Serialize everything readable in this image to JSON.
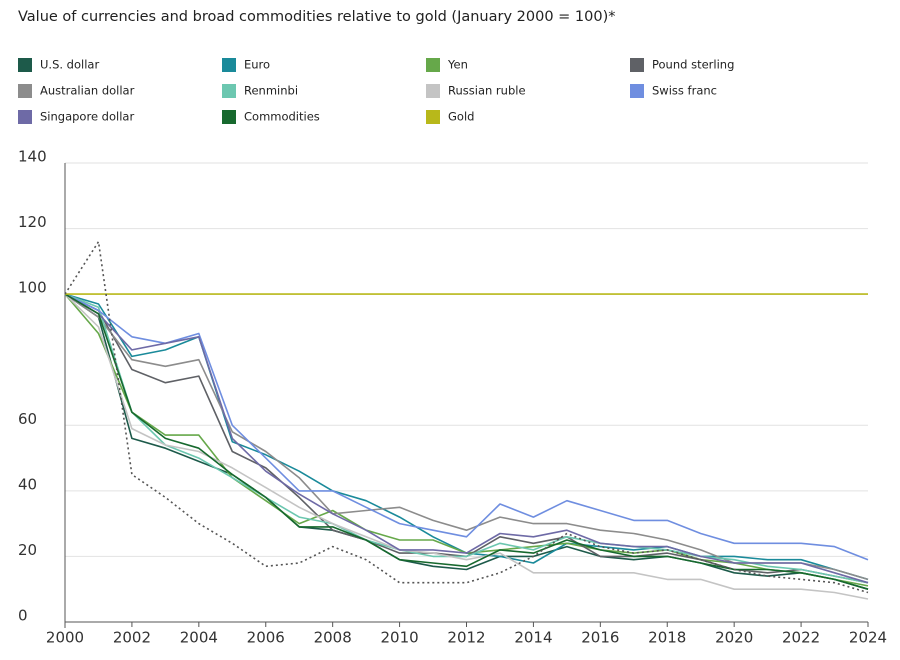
{
  "chart_data": {
    "type": "line",
    "title": "Value of currencies and broad commodities relative to gold (January 2000 = 100)*",
    "x": [
      2000,
      2001,
      2002,
      2003,
      2004,
      2005,
      2006,
      2007,
      2008,
      2009,
      2010,
      2011,
      2012,
      2013,
      2014,
      2015,
      2016,
      2017,
      2018,
      2019,
      2020,
      2021,
      2022,
      2023,
      2024
    ],
    "xlim": [
      2000,
      2024
    ],
    "xticks": [
      2000,
      2002,
      2004,
      2006,
      2008,
      2010,
      2012,
      2014,
      2016,
      2018,
      2020,
      2022,
      2024
    ],
    "ylim": [
      0,
      140
    ],
    "yticks": [
      0,
      20,
      40,
      60,
      100,
      120,
      140
    ],
    "grid": true,
    "series": [
      {
        "name": "U.S. dollar",
        "color": "#1d5a4a",
        "values": [
          100,
          93,
          56,
          53,
          49,
          45,
          38,
          29,
          28,
          25,
          19,
          17,
          16,
          20,
          20,
          23,
          20,
          19,
          20,
          18,
          15,
          14,
          15,
          13,
          10
        ]
      },
      {
        "name": "Euro",
        "color": "#1a8a9a",
        "values": [
          100,
          97,
          81,
          83,
          87,
          55,
          51,
          46,
          40,
          37,
          32,
          26,
          21,
          20,
          18,
          24,
          23,
          22,
          23,
          20,
          20,
          19,
          19,
          16,
          13
        ]
      },
      {
        "name": "Yen",
        "color": "#66a84a",
        "values": [
          100,
          88,
          64,
          57,
          57,
          44,
          37,
          30,
          34,
          28,
          25,
          25,
          21,
          22,
          23,
          24,
          22,
          21,
          22,
          19,
          18,
          16,
          15,
          13,
          11
        ]
      },
      {
        "name": "Pound sterling",
        "color": "#5f6166",
        "values": [
          100,
          95,
          77,
          73,
          75,
          52,
          47,
          38,
          28,
          25,
          21,
          21,
          20,
          26,
          24,
          26,
          20,
          20,
          21,
          19,
          16,
          15,
          16,
          14,
          12
        ]
      },
      {
        "name": "Australian dollar",
        "color": "#8c8c8c",
        "values": [
          100,
          93,
          80,
          78,
          80,
          58,
          52,
          44,
          33,
          34,
          35,
          31,
          28,
          32,
          30,
          30,
          28,
          27,
          25,
          22,
          18,
          18,
          18,
          16,
          13
        ]
      },
      {
        "name": "Renminbi",
        "color": "#6cc7b0",
        "values": [
          100,
          96,
          64,
          54,
          50,
          44,
          38,
          32,
          30,
          25,
          22,
          20,
          20,
          24,
          22,
          26,
          24,
          23,
          22,
          20,
          19,
          17,
          16,
          14,
          12
        ]
      },
      {
        "name": "Russian ruble",
        "color": "#c4c4c4",
        "values": [
          100,
          90,
          59,
          54,
          52,
          47,
          41,
          35,
          30,
          26,
          22,
          21,
          19,
          21,
          15,
          15,
          15,
          15,
          13,
          13,
          10,
          10,
          10,
          9,
          7
        ]
      },
      {
        "name": "Swiss franc",
        "color": "#6f8ee0",
        "values": [
          100,
          95,
          87,
          85,
          88,
          60,
          50,
          40,
          40,
          35,
          30,
          28,
          26,
          36,
          32,
          37,
          34,
          31,
          31,
          27,
          24,
          24,
          24,
          23,
          19
        ]
      },
      {
        "name": "Singapore dollar",
        "color": "#6e6aa6",
        "values": [
          100,
          94,
          83,
          85,
          87,
          56,
          46,
          39,
          33,
          28,
          22,
          22,
          21,
          27,
          26,
          28,
          24,
          23,
          23,
          20,
          18,
          18,
          18,
          15,
          12
        ]
      },
      {
        "name": "Commodities",
        "color": "#17692e",
        "values": [
          100,
          94,
          64,
          56,
          53,
          45,
          38,
          29,
          29,
          25,
          19,
          18,
          17,
          22,
          21,
          25,
          22,
          20,
          20,
          18,
          16,
          16,
          15,
          13,
          10
        ]
      },
      {
        "name": "Gold",
        "color": "#b8b81a",
        "values": [
          100,
          100,
          100,
          100,
          100,
          100,
          100,
          100,
          100,
          100,
          100,
          100,
          100,
          100,
          100,
          100,
          100,
          100,
          100,
          100,
          100,
          100,
          100,
          100,
          100
        ]
      },
      {
        "color": "#555555",
        "dash": true,
        "values": [
          100,
          116,
          45,
          38,
          30,
          24,
          17,
          18,
          23,
          19,
          12,
          12,
          12,
          15,
          20,
          27,
          23,
          21,
          22,
          19,
          16,
          14,
          13,
          12,
          9
        ]
      }
    ]
  }
}
